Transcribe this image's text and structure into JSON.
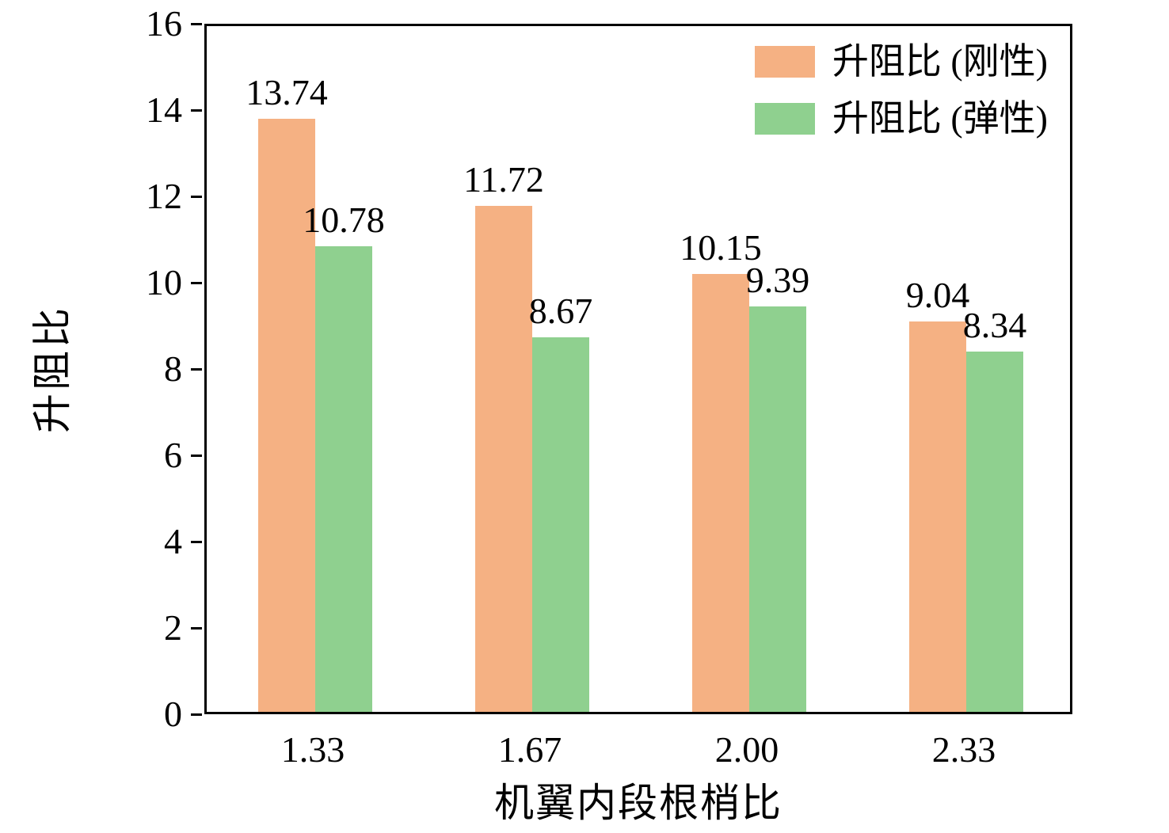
{
  "chart_data": {
    "type": "bar",
    "title": "",
    "xlabel": "机翼内段根梢比",
    "ylabel": "升阻比",
    "categories": [
      "1.33",
      "1.67",
      "2.00",
      "2.33"
    ],
    "series": [
      {
        "name": "升阻比 (刚性)",
        "color": "#F5B183",
        "values": [
          13.74,
          11.72,
          10.15,
          9.04
        ]
      },
      {
        "name": "升阻比 (弹性)",
        "color": "#8FD08F",
        "values": [
          10.78,
          8.67,
          9.39,
          8.34
        ]
      }
    ],
    "ylim": [
      0,
      16
    ],
    "ytick_step": 2,
    "grid": "off",
    "legend_position": "top-right",
    "value_label_decimals": 2
  }
}
